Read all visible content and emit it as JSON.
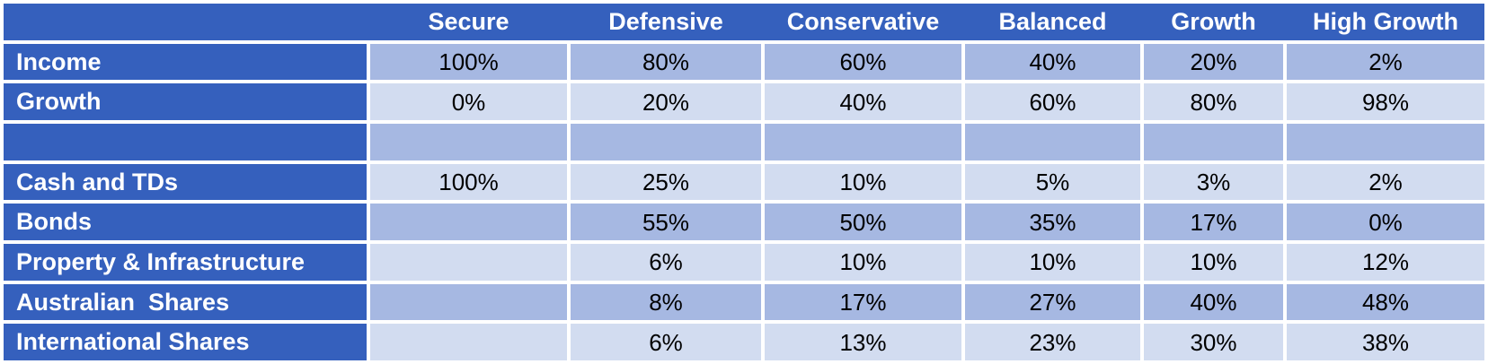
{
  "chart_data": {
    "type": "table",
    "title": "",
    "columns": [
      "",
      "Secure",
      "Defensive",
      "Conservative",
      "Balanced",
      "Growth",
      "High Growth"
    ],
    "rows": [
      {
        "label": "Income",
        "values": [
          "100%",
          "80%",
          "60%",
          "40%",
          "20%",
          "2%"
        ]
      },
      {
        "label": "Growth",
        "values": [
          "0%",
          "20%",
          "40%",
          "60%",
          "80%",
          "98%"
        ]
      },
      {
        "label": "",
        "values": [
          "",
          "",
          "",
          "",
          "",
          ""
        ]
      },
      {
        "label": "Cash and TDs",
        "values": [
          "100%",
          "25%",
          "10%",
          "5%",
          "3%",
          "2%"
        ]
      },
      {
        "label": "Bonds",
        "values": [
          "",
          "55%",
          "50%",
          "35%",
          "17%",
          "0%"
        ]
      },
      {
        "label": "Property & Infrastructure",
        "values": [
          "",
          "6%",
          "10%",
          "10%",
          "10%",
          "12%"
        ]
      },
      {
        "label": "Australian  Shares",
        "values": [
          "",
          "8%",
          "17%",
          "27%",
          "40%",
          "48%"
        ]
      },
      {
        "label": "International Shares",
        "values": [
          "",
          "6%",
          "13%",
          "23%",
          "30%",
          "38%"
        ]
      }
    ]
  },
  "colors": {
    "header_bg": "#3560bd",
    "band_medium": "#a6b8e2",
    "band_light": "#d2dcf0",
    "header_text": "#ffffff",
    "cell_text": "#000000",
    "page_bg": "#ffffff"
  }
}
